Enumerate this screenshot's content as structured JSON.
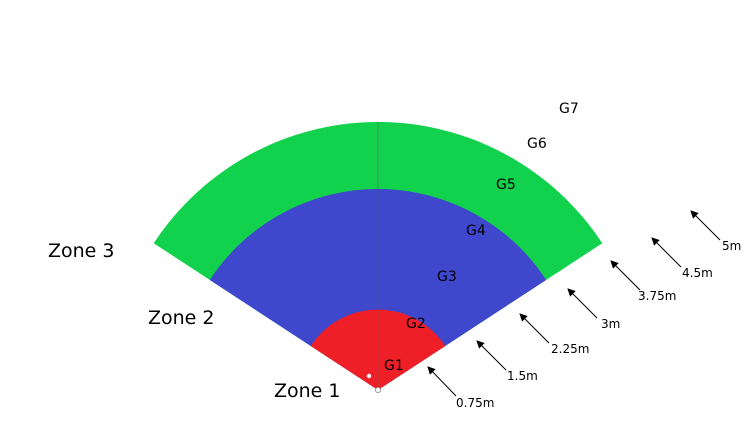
{
  "colors": {
    "zone1": "#ee1f27",
    "zone2": "#3f47cc",
    "zone3": "#12d14c",
    "background": "#ffffff",
    "ink": "#000000"
  },
  "zones": [
    {
      "label": "Zone 1",
      "radius_m": 1.5
    },
    {
      "label": "Zone 2",
      "radius_m": 3.75
    },
    {
      "label": "Zone 3",
      "radius_m": 5
    }
  ],
  "rings": [
    "G1",
    "G2",
    "G3",
    "G4",
    "G5",
    "G6",
    "G7"
  ],
  "distances": [
    {
      "label": "0.75m",
      "value_m": 0.75
    },
    {
      "label": "1.5m",
      "value_m": 1.5
    },
    {
      "label": "2.25m",
      "value_m": 2.25
    },
    {
      "label": "3m",
      "value_m": 3
    },
    {
      "label": "3.75m",
      "value_m": 3.75
    },
    {
      "label": "4.5m",
      "value_m": 4.5
    },
    {
      "label": "5m",
      "value_m": 5
    }
  ]
}
